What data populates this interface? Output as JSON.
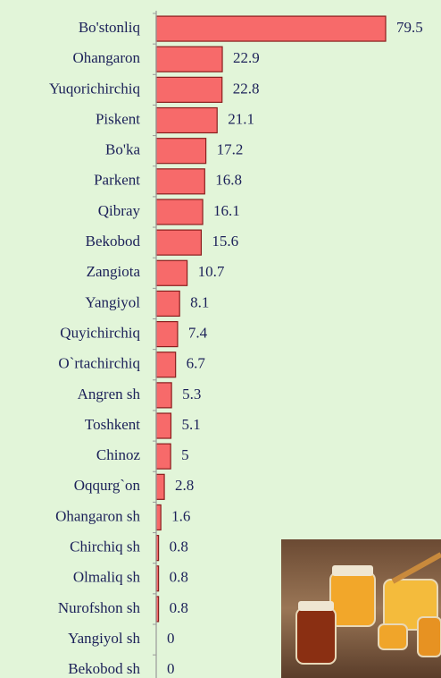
{
  "chart_data": {
    "type": "bar",
    "orientation": "horizontal",
    "categories": [
      "Bo'stonliq",
      "Ohangaron",
      "Yuqorichirchiq",
      "Piskent",
      "Bo'ka",
      "Parkent",
      "Qibray",
      "Bekobod",
      "Zangiota",
      "Yangiyol",
      "Quyichirchiq",
      "O`rtachirchiq",
      "Angren sh",
      "Toshkent",
      "Chinoz",
      "Oqqurg`on",
      "Ohangaron sh",
      "Chirchiq sh",
      "Olmaliq sh",
      "Nurofshon sh",
      "Yangiyol sh",
      "Bekobod sh"
    ],
    "values": [
      79.5,
      22.9,
      22.8,
      21.1,
      17.2,
      16.8,
      16.1,
      15.6,
      10.7,
      8.1,
      7.4,
      6.7,
      5.3,
      5.1,
      5,
      2.8,
      1.6,
      0.8,
      0.8,
      0.8,
      0,
      0
    ],
    "color": "#f76a6a"
  }
}
